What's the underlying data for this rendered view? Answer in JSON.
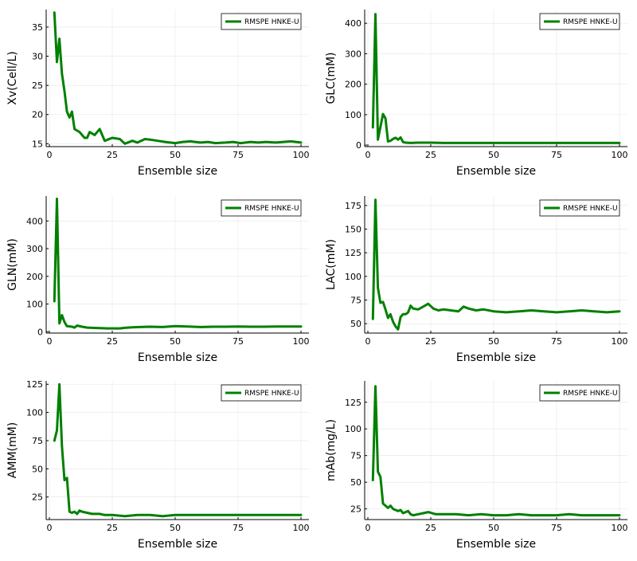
{
  "chart_data": [
    {
      "type": "line",
      "xlabel": "Ensemble size",
      "ylabel": "Xv(Cell/L)",
      "xlim": [
        0,
        100
      ],
      "ylim": [
        14.5,
        38
      ],
      "xticks": [
        0,
        25,
        50,
        75,
        100
      ],
      "yticks": [
        15,
        20,
        25,
        30,
        35
      ],
      "grid": true,
      "legend_position": "top-right",
      "series": [
        {
          "name": "RMSPE HNKE-U",
          "color": "#008000",
          "x": [
            2,
            3,
            4,
            5,
            6,
            7,
            8,
            9,
            10,
            12,
            14,
            15,
            16,
            18,
            19,
            20,
            22,
            25,
            28,
            30,
            33,
            35,
            38,
            40,
            43,
            46,
            48,
            50,
            53,
            56,
            60,
            63,
            66,
            70,
            73,
            76,
            80,
            83,
            86,
            90,
            93,
            96,
            100
          ],
          "y": [
            37.5,
            29,
            33,
            27,
            24,
            20.5,
            19.5,
            20.5,
            17.5,
            17,
            16,
            16,
            17,
            16.5,
            17,
            17.5,
            15.5,
            16,
            15.8,
            15,
            15.5,
            15.2,
            15.8,
            15.7,
            15.5,
            15.3,
            15.2,
            15.1,
            15.3,
            15.4,
            15.2,
            15.3,
            15.1,
            15.2,
            15.3,
            15.1,
            15.3,
            15.2,
            15.3,
            15.2,
            15.3,
            15.4,
            15.2
          ]
        }
      ]
    },
    {
      "type": "line",
      "xlabel": "Ensemble size",
      "ylabel": "GLC(mM)",
      "xlim": [
        0,
        100
      ],
      "ylim": [
        -5,
        445
      ],
      "xticks": [
        0,
        25,
        50,
        75,
        100
      ],
      "yticks": [
        0,
        100,
        200,
        300,
        400
      ],
      "grid": true,
      "legend_position": "top-right",
      "series": [
        {
          "name": "RMSPE HNKE-U",
          "color": "#008000",
          "x": [
            2,
            3,
            4,
            5,
            6,
            7,
            8,
            9,
            10,
            11,
            12,
            13,
            14,
            15,
            17,
            20,
            25,
            30,
            40,
            50,
            60,
            70,
            80,
            90,
            100
          ],
          "y": [
            58,
            430,
            18,
            60,
            102,
            88,
            12,
            14,
            20,
            24,
            18,
            25,
            10,
            8,
            7,
            8,
            8,
            7,
            7,
            7,
            7,
            7,
            7,
            7,
            7
          ]
        }
      ]
    },
    {
      "type": "line",
      "xlabel": "Ensemble size",
      "ylabel": "GLN(mM)",
      "xlim": [
        0,
        100
      ],
      "ylim": [
        -5,
        490
      ],
      "xticks": [
        0,
        25,
        50,
        75,
        100
      ],
      "yticks": [
        0,
        100,
        200,
        300,
        400
      ],
      "grid": true,
      "legend_position": "top-right",
      "series": [
        {
          "name": "RMSPE HNKE-U",
          "color": "#008000",
          "x": [
            2,
            3,
            4,
            5,
            6,
            7,
            9,
            10,
            11,
            13,
            15,
            17,
            20,
            23,
            25,
            28,
            30,
            33,
            36,
            40,
            45,
            50,
            55,
            60,
            65,
            70,
            75,
            80,
            85,
            90,
            95,
            100
          ],
          "y": [
            110,
            480,
            30,
            60,
            35,
            20,
            18,
            15,
            22,
            18,
            15,
            14,
            13,
            12,
            12,
            12,
            14,
            16,
            17,
            18,
            17,
            20,
            19,
            17,
            18,
            18,
            19,
            18,
            18,
            19,
            19,
            19
          ]
        }
      ]
    },
    {
      "type": "line",
      "xlabel": "Ensemble size",
      "ylabel": "LAC(mM)",
      "xlim": [
        0,
        100
      ],
      "ylim": [
        40,
        185
      ],
      "xticks": [
        0,
        25,
        50,
        75,
        100
      ],
      "yticks": [
        50,
        75,
        100,
        125,
        150,
        175
      ],
      "grid": true,
      "legend_position": "top-right",
      "series": [
        {
          "name": "RMSPE HNKE-U",
          "color": "#008000",
          "x": [
            2,
            3,
            4,
            5,
            6,
            7,
            8,
            9,
            10,
            11,
            12,
            13,
            14,
            15,
            16,
            17,
            18,
            20,
            22,
            24,
            26,
            28,
            30,
            33,
            36,
            38,
            40,
            43,
            46,
            50,
            55,
            60,
            65,
            70,
            75,
            80,
            85,
            90,
            95,
            100
          ],
          "y": [
            55,
            181,
            88,
            72,
            73,
            65,
            56,
            60,
            52,
            47,
            44,
            57,
            60,
            60,
            62,
            69,
            66,
            65,
            68,
            71,
            66,
            64,
            65,
            64,
            63,
            68,
            66,
            64,
            65,
            63,
            62,
            63,
            64,
            63,
            62,
            63,
            64,
            63,
            62,
            63
          ]
        }
      ]
    },
    {
      "type": "line",
      "xlabel": "Ensemble size",
      "ylabel": "AMM(mM)",
      "xlim": [
        0,
        100
      ],
      "ylim": [
        5,
        128
      ],
      "xticks": [
        0,
        25,
        50,
        75,
        100
      ],
      "yticks": [
        25,
        50,
        75,
        100,
        125
      ],
      "grid": true,
      "legend_position": "top-right",
      "series": [
        {
          "name": "RMSPE HNKE-U",
          "color": "#008000",
          "x": [
            2,
            3,
            4,
            5,
            6,
            7,
            8,
            9,
            10,
            11,
            12,
            13,
            15,
            17,
            20,
            22,
            25,
            30,
            35,
            40,
            45,
            50,
            55,
            60,
            65,
            70,
            75,
            80,
            85,
            90,
            95,
            100
          ],
          "y": [
            75,
            84,
            125,
            70,
            40,
            42,
            12,
            11,
            12,
            10,
            13,
            12,
            11,
            10,
            10,
            9,
            9,
            8,
            9,
            9,
            8,
            9,
            9,
            9,
            9,
            9,
            9,
            9,
            9,
            9,
            9,
            9
          ]
        }
      ]
    },
    {
      "type": "line",
      "xlabel": "Ensemble size",
      "ylabel": "mAb(mg/L)",
      "xlim": [
        0,
        100
      ],
      "ylim": [
        15,
        145
      ],
      "xticks": [
        0,
        25,
        50,
        75,
        100
      ],
      "yticks": [
        25,
        50,
        75,
        100,
        125
      ],
      "grid": true,
      "legend_position": "top-right",
      "series": [
        {
          "name": "RMSPE HNKE-U",
          "color": "#008000",
          "x": [
            2,
            3,
            4,
            5,
            6,
            7,
            8,
            9,
            10,
            11,
            12,
            13,
            14,
            15,
            16,
            17,
            18,
            20,
            22,
            24,
            27,
            30,
            35,
            40,
            45,
            50,
            55,
            60,
            65,
            70,
            75,
            80,
            85,
            90,
            95,
            100
          ],
          "y": [
            52,
            140,
            60,
            55,
            30,
            28,
            26,
            28,
            25,
            24,
            23,
            24,
            21,
            22,
            23,
            20,
            19,
            20,
            21,
            22,
            20,
            20,
            20,
            19,
            20,
            19,
            19,
            20,
            19,
            19,
            19,
            20,
            19,
            19,
            19,
            19
          ]
        }
      ]
    }
  ]
}
